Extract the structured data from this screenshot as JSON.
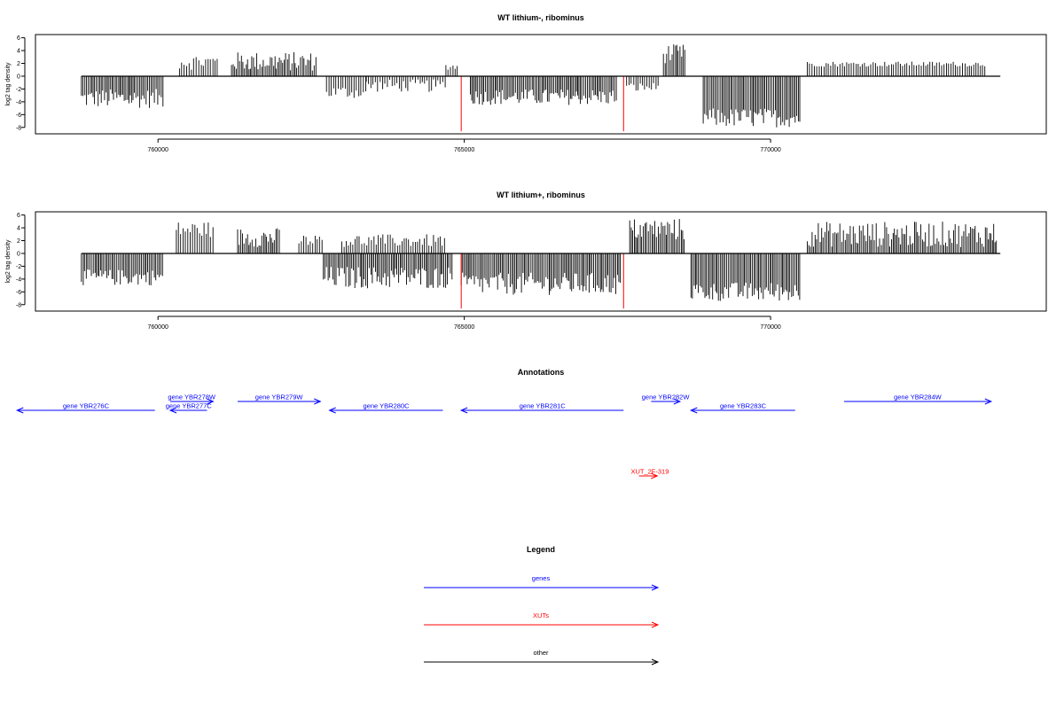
{
  "chart_data": [
    {
      "type": "bar",
      "title": "WT lithium-, ribominus",
      "xlabel": "",
      "ylabel": "log2 tag density",
      "xlim": [
        758000,
        774500
      ],
      "ylim": [
        -9,
        6.5
      ],
      "yticks": [
        6,
        4,
        2,
        0,
        -2,
        -4,
        -6,
        -8
      ],
      "xticks": [
        760000,
        765000,
        770000
      ],
      "grid": false,
      "profile": [
        {
          "x": [
            758750,
            760100
          ],
          "min": -5.0,
          "max": -2.0
        },
        {
          "x": [
            760350,
            761000
          ],
          "min": 1.0,
          "max": 3.5
        },
        {
          "x": [
            761200,
            762600
          ],
          "min": 0.8,
          "max": 3.8
        },
        {
          "x": [
            762750,
            763400
          ],
          "min": -3.5,
          "max": -1.5
        },
        {
          "x": [
            763400,
            764700
          ],
          "min": -2.5,
          "max": -0.5
        },
        {
          "x": [
            764700,
            764900
          ],
          "min": 1.0,
          "max": 2.0
        },
        {
          "x": [
            765100,
            767500
          ],
          "min": -4.5,
          "max": -2.0
        },
        {
          "x": [
            767650,
            768200
          ],
          "min": -2.5,
          "max": -1.0
        },
        {
          "x": [
            768250,
            768600
          ],
          "min": 2.0,
          "max": 5.0
        },
        {
          "x": [
            768900,
            770500
          ],
          "min": -8.0,
          "max": -5.0
        },
        {
          "x": [
            770600,
            773500
          ],
          "min": 1.5,
          "max": 2.3
        }
      ],
      "red_marks": [
        764950,
        767600
      ],
      "red_min": -8.6
    },
    {
      "type": "bar",
      "title": "WT lithium+, ribominus",
      "xlabel": "",
      "ylabel": "log2 tag density",
      "xlim": [
        758000,
        774500
      ],
      "ylim": [
        -9,
        6.5
      ],
      "yticks": [
        6,
        4,
        2,
        0,
        -2,
        -4,
        -6,
        -8
      ],
      "xticks": [
        760000,
        765000,
        770000
      ],
      "grid": false,
      "profile": [
        {
          "x": [
            758750,
            760100
          ],
          "min": -5.0,
          "max": -2.5
        },
        {
          "x": [
            760300,
            760900
          ],
          "min": 2.5,
          "max": 5.0
        },
        {
          "x": [
            761300,
            762000
          ],
          "min": 1.0,
          "max": 4.0
        },
        {
          "x": [
            762300,
            762700
          ],
          "min": 1.0,
          "max": 3.0
        },
        {
          "x": [
            762700,
            764800
          ],
          "min": -5.5,
          "max": -2.0
        },
        {
          "x": [
            763000,
            764700
          ],
          "min": 1.0,
          "max": 3.0
        },
        {
          "x": [
            764950,
            767550
          ],
          "min": -6.5,
          "max": -3.0
        },
        {
          "x": [
            767700,
            768600
          ],
          "min": 2.0,
          "max": 5.5
        },
        {
          "x": [
            768700,
            770500
          ],
          "min": -7.5,
          "max": -4.5
        },
        {
          "x": [
            770600,
            773700
          ],
          "min": 1.0,
          "max": 5.0
        }
      ],
      "red_marks": [
        764950,
        767600
      ],
      "red_min": -8.6
    }
  ],
  "annotations": {
    "title": "Annotations",
    "genes": [
      {
        "name": "gene YBR276C",
        "start": 757700,
        "end": 759950,
        "strand": "-",
        "row": 2
      },
      {
        "name": "gene YBR277C",
        "start": 760200,
        "end": 760800,
        "strand": "-",
        "row": 2
      },
      {
        "name": "gene YBR278W",
        "start": 760200,
        "end": 760900,
        "strand": "+",
        "row": 1
      },
      {
        "name": "gene YBR279W",
        "start": 761300,
        "end": 762650,
        "strand": "+",
        "row": 1
      },
      {
        "name": "gene YBR280C",
        "start": 762800,
        "end": 764650,
        "strand": "-",
        "row": 2
      },
      {
        "name": "gene YBR281C",
        "start": 764950,
        "end": 767600,
        "strand": "-",
        "row": 2
      },
      {
        "name": "gene YBR282W",
        "start": 768050,
        "end": 768520,
        "strand": "+",
        "row": 1
      },
      {
        "name": "gene YBR283C",
        "start": 768700,
        "end": 770400,
        "strand": "-",
        "row": 2
      },
      {
        "name": "gene YBR284W",
        "start": 771200,
        "end": 773600,
        "strand": "+",
        "row": 1
      }
    ],
    "xuts": [
      {
        "name": "XUT_2F-319",
        "start": 767850,
        "end": 768150,
        "strand": "+"
      }
    ]
  },
  "legend": {
    "title": "Legend",
    "items": [
      {
        "label": "genes",
        "color": "#0000ff"
      },
      {
        "label": "XUTs",
        "color": "#ff0000"
      },
      {
        "label": "other",
        "color": "#000000"
      }
    ]
  },
  "colors": {
    "gene": "#0000ff",
    "xut": "#ff0000",
    "signal": "#000000",
    "axis": "#000000"
  }
}
